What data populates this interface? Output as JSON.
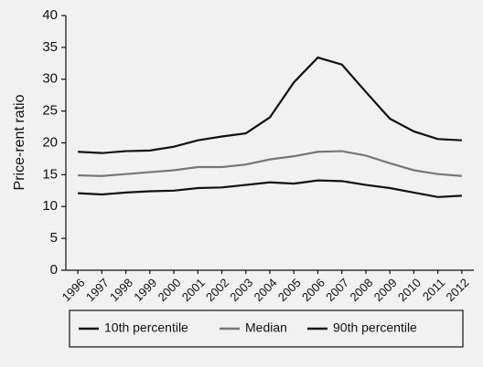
{
  "chart_data": {
    "type": "line",
    "ylabel": "Price-rent ratio",
    "categories": [
      "1996",
      "1997",
      "1998",
      "1999",
      "2000",
      "2001",
      "2002",
      "2003",
      "2004",
      "2005",
      "2006",
      "2007",
      "2008",
      "2009",
      "2010",
      "2011",
      "2012"
    ],
    "series": [
      {
        "name": "10th percentile",
        "color": "#111111",
        "values": [
          12.1,
          11.9,
          12.2,
          12.4,
          12.5,
          12.9,
          13.0,
          13.4,
          13.8,
          13.6,
          14.1,
          14.0,
          13.4,
          12.9,
          12.2,
          11.5,
          11.7
        ]
      },
      {
        "name": "Median",
        "color": "#777777",
        "values": [
          14.9,
          14.8,
          15.1,
          15.4,
          15.7,
          16.2,
          16.2,
          16.6,
          17.4,
          17.9,
          18.6,
          18.7,
          18.0,
          16.8,
          15.7,
          15.1,
          14.8
        ]
      },
      {
        "name": "90th percentile",
        "color": "#111111",
        "values": [
          18.6,
          18.4,
          18.7,
          18.8,
          19.4,
          20.4,
          21.0,
          21.5,
          24.0,
          29.5,
          33.4,
          32.3,
          28.0,
          23.8,
          21.8,
          20.6,
          20.4
        ]
      }
    ],
    "ylim": [
      0,
      40
    ],
    "yticks": [
      0,
      5,
      10,
      15,
      20,
      25,
      30,
      35,
      40
    ],
    "grid": false
  }
}
